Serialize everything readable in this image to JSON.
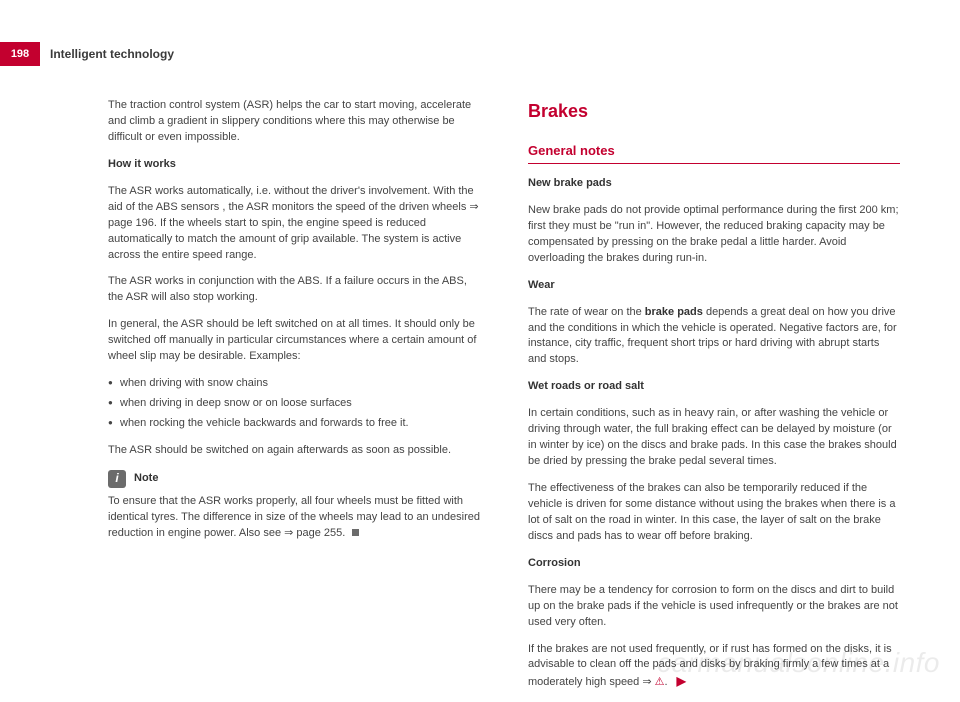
{
  "colors": {
    "accent": "#c3002f",
    "text": "#3a3a3a",
    "muted": "#444444",
    "tab_bg": "#c3002f",
    "tab_text": "#ffffff",
    "rule": "#c3002f",
    "end_square": "#6b6b6b",
    "note_icon_bg": "#6b6b6b",
    "note_icon_fg": "#ffffff",
    "watermark": "rgba(0,0,0,0.08)"
  },
  "header": {
    "page_number": "198",
    "title": "Intelligent technology"
  },
  "left": {
    "intro": "The traction control system (ASR) helps the car to start moving, accelerate and climb a gradient in slippery conditions where this may otherwise be difficult or even impossible.",
    "how_heading": "How it works",
    "how_p1": "The ASR works automatically, i.e. without the driver's involvement. With the aid of the ABS sensors , the ASR monitors the speed of the driven wheels ⇒ page 196. If the wheels start to spin, the engine speed is reduced automatically to match the amount of grip available. The system is active across the entire speed range.",
    "how_p2": "The ASR works in conjunction with the ABS. If a failure occurs in the ABS, the ASR will also stop working.",
    "how_p3": "In general, the ASR should be left switched on at all times. It should only be switched off manually in particular circumstances where a certain amount of wheel slip may be desirable. Examples:",
    "bullets": {
      "b1": "when driving with snow chains",
      "b2": "when driving in deep snow or on loose surfaces",
      "b3": "when rocking the vehicle backwards and forwards to free it."
    },
    "after_bullets": "The ASR should be switched on again afterwards as soon as possible.",
    "note_label": "Note",
    "note_body": "To ensure that the ASR works properly, all four wheels must be fitted with identical tyres. The difference in size of the wheels may lead to an undesired reduction in engine power. Also see ⇒ page 255."
  },
  "right": {
    "h1": "Brakes",
    "h2": "General notes",
    "pads_heading": "New brake pads",
    "pads_body": "New brake pads do not provide optimal performance during the first 200 km; first they must be \"run in\". However, the reduced braking capacity may be compensated by pressing on the brake pedal a little harder. Avoid overloading the brakes during run-in.",
    "wear_heading": "Wear",
    "wear_pre": "The rate of wear on the ",
    "wear_bold": "brake pads",
    "wear_post": " depends a great deal on how you drive and the conditions in which the vehicle is operated. Negative factors are, for instance, city traffic, frequent short trips or hard driving with abrupt starts and stops.",
    "wet_heading": "Wet roads or road salt",
    "wet_p1": "In certain conditions, such as in heavy rain, or after washing the vehicle or driving through water, the full braking effect can be delayed by moisture (or in winter by ice) on the discs and brake pads. In this case the brakes should be dried by pressing the brake pedal several times.",
    "wet_p2": "The effectiveness of the brakes can also be temporarily reduced if the vehicle is driven for some distance without using the brakes when there is a lot of salt on the road in winter. In this case, the layer of salt on the brake discs and pads has to wear off before braking.",
    "corr_heading": "Corrosion",
    "corr_p1": "There may be a tendency for corrosion to form on the discs and dirt to build up on the brake pads if the vehicle is used infrequently or the brakes are not used very often.",
    "corr_p2_pre": "If the brakes are not used frequently, or if rust has formed on the disks, it is advisable to clean off the pads and disks by braking firmly a few times at a moderately high speed ⇒ ",
    "corr_p2_post": "."
  },
  "watermark": "carmanualsonline.info"
}
